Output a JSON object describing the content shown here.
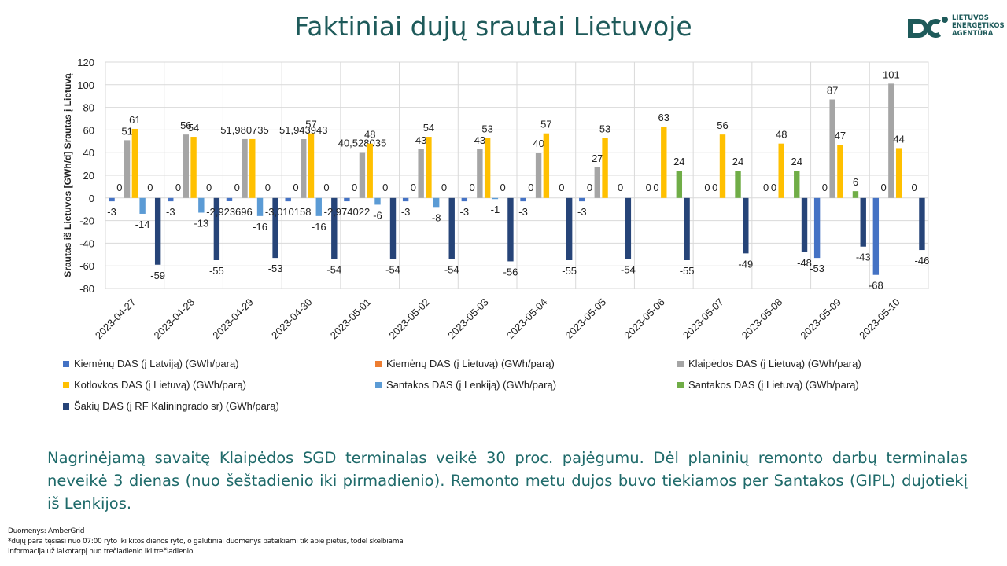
{
  "page": {
    "title": "Faktiniai dujų srautai Lietuvoje",
    "logo": {
      "line1": "LIETUVOS",
      "line2": "ENERGETIKOS",
      "line3": "AGENTŪRA"
    },
    "note": "Nagrinėjamą savaitę Klaipėdos SGD terminalas veikė 30 proc. pajėgumu. Dėl planinių remonto darbų terminalas neveikė 3 dienas (nuo šeštadienio iki pirmadienio). Remonto metu dujos buvo tiekiamos per Santakos (GIPL) dujotiekį iš Lenkijos.",
    "source_line1": "Duomenys: AmberGrid",
    "source_line2": "*dujų para tęsiasi nuo 07:00 ryto iki kitos dienos ryto, o galutiniai duomenys pateikiami tik apie pietus, todėl skelbiama",
    "source_line3": "informacija už laikotarpį nuo trečiadienio iki trečiadienio.",
    "colors": {
      "title": "#1e5a5a",
      "note": "#1f6a6a",
      "logo": "#1e5a5a"
    }
  },
  "chart_data": {
    "type": "bar",
    "ylabel": "Srautas iš Lietuvos [GWh/d] Srautas į Lietuvą",
    "ylim": [
      -80,
      120
    ],
    "yticks": [
      -80,
      -60,
      -40,
      -20,
      0,
      20,
      40,
      60,
      80,
      100,
      120
    ],
    "grid": true,
    "legend_position": "bottom",
    "categories": [
      "2023-04-27",
      "2023-04-28",
      "2023-04-29",
      "2023-04-30",
      "2023-05-01",
      "2023-05-02",
      "2023-05-03",
      "2023-05-04",
      "2023-05-05",
      "2023-05-06",
      "2023-05-07",
      "2023-05-08",
      "2023-05-09",
      "2023-05-10"
    ],
    "series": [
      {
        "name": "Kiemėnų DAS (į Latviją) (GWh/parą)",
        "color": "#4472c4",
        "values": [
          -3,
          -3,
          -2.923696,
          -3.010158,
          -2.974022,
          -3,
          -3,
          -3,
          -3,
          null,
          null,
          null,
          -53,
          -68
        ],
        "labels": [
          "-3",
          "-3",
          "-2,923696",
          "-3,010158",
          "-2,974022",
          "-3",
          "-3",
          "-3",
          "-3",
          "",
          "",
          "",
          "-53",
          "-68"
        ]
      },
      {
        "name": "Kiemėnų DAS (į Lietuvą) (GWh/parą)",
        "color": "#ed7d31",
        "values": [
          0,
          0,
          0,
          0,
          0,
          0,
          0,
          0,
          0,
          0,
          0,
          0,
          0,
          0
        ],
        "labels": [
          "0",
          "0",
          "0",
          "0",
          "0",
          "0",
          "0",
          "0",
          "0",
          "0",
          "0",
          "0",
          "0",
          "0"
        ]
      },
      {
        "name": "Klaipėdos DAS (į Lietuvą) (GWh/parą)",
        "color": "#a5a5a5",
        "values": [
          51,
          56,
          51.980735,
          51.943943,
          40.528035,
          43,
          43,
          40,
          27,
          0,
          0,
          0,
          87,
          101
        ],
        "labels": [
          "51",
          "56",
          "51,980735",
          "51,943943",
          "40,528035",
          "43",
          "43",
          "40",
          "27",
          "0",
          "0",
          "0",
          "87",
          "101"
        ]
      },
      {
        "name": "Kotlovkos DAS (į Lietuvą) (GWh/parą)",
        "color": "#ffc000",
        "values": [
          61,
          54,
          52,
          57,
          48,
          54,
          53,
          57,
          53,
          63,
          56,
          48,
          47,
          44
        ],
        "labels": [
          "61",
          "54",
          "",
          "57",
          "48",
          "54",
          "53",
          "57",
          "53",
          "63",
          "56",
          "48",
          "47",
          "44"
        ]
      },
      {
        "name": "Santakos DAS (į Lenkiją) (GWh/parą)",
        "color": "#5b9bd5",
        "values": [
          -14,
          -13,
          -16,
          -16,
          -6,
          -8,
          -1,
          null,
          null,
          null,
          null,
          null,
          null,
          null
        ],
        "labels": [
          "-14",
          "-13",
          "-16",
          "-16",
          "-6",
          "-8",
          "-1",
          "",
          "",
          "",
          "",
          "",
          "",
          ""
        ]
      },
      {
        "name": "Santakos DAS (į Lietuvą) (GWh/parą)",
        "color": "#70ad47",
        "values": [
          0,
          0,
          0,
          0,
          0,
          0,
          0,
          0,
          0,
          24,
          24,
          24,
          6,
          0
        ],
        "labels": [
          "0",
          "0",
          "0",
          "0",
          "0",
          "0",
          "0",
          "0",
          "0",
          "24",
          "24",
          "24",
          "6",
          "0"
        ]
      },
      {
        "name": "Šakių DAS (į RF Kaliningrado sr) (GWh/parą)",
        "color": "#264478",
        "values": [
          -59,
          -55,
          -53,
          -54,
          -54,
          -54,
          -56,
          -55,
          -54,
          -55,
          -49,
          -48,
          -43,
          -46
        ],
        "labels": [
          "-59",
          "-55",
          "-53",
          "-54",
          "-54",
          "-54",
          "-56",
          "-55",
          "-54",
          "-55",
          "-49",
          "-48",
          "-43",
          "-46"
        ]
      }
    ]
  }
}
